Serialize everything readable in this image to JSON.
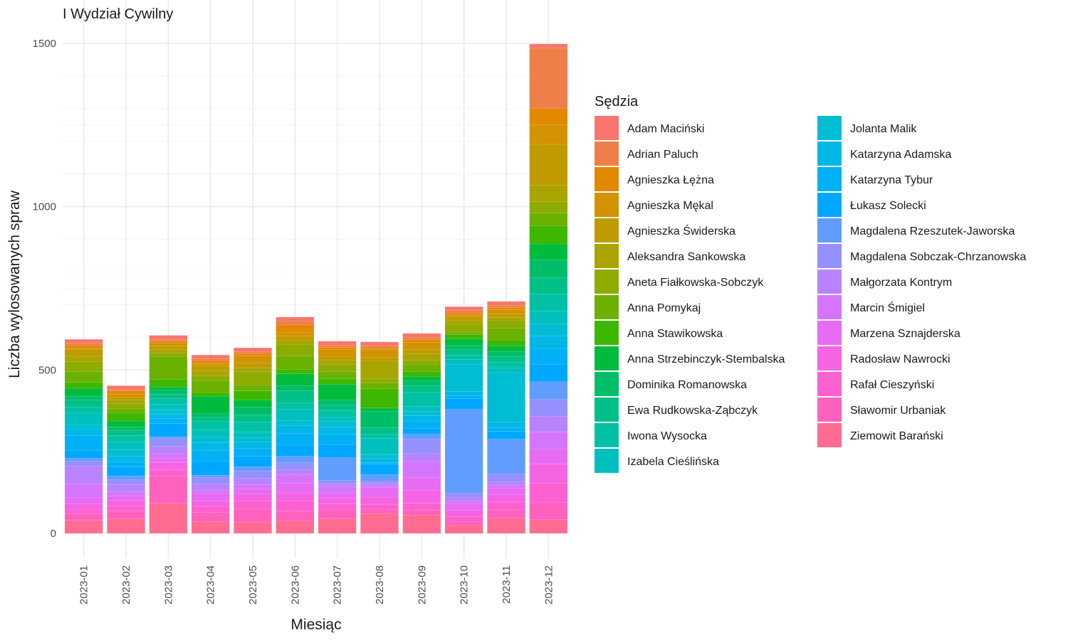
{
  "chart_data": {
    "type": "bar",
    "stacked": true,
    "title": "I Wydział Cywilny",
    "xlabel": "Miesiąc",
    "ylabel": "Liczba wylosowanych spraw",
    "legend_title": "Sędzia",
    "legend_position": "right",
    "grid": true,
    "ylim": [
      -55,
      1560
    ],
    "yticks": [
      0,
      500,
      1000,
      1500
    ],
    "categories": [
      "2023-01",
      "2023-02",
      "2023-03",
      "2023-04",
      "2023-05",
      "2023-06",
      "2023-07",
      "2023-08",
      "2023-09",
      "2023-10",
      "2023-11",
      "2023-12"
    ],
    "series": [
      {
        "name": "Adam Maciński",
        "color": "#F8766D",
        "values": [
          12,
          12,
          12,
          12,
          12,
          12,
          12,
          12,
          12,
          12,
          12,
          12
        ]
      },
      {
        "name": "Adrian Paluch",
        "color": "#EF7F49",
        "values": [
          6,
          4,
          6,
          6,
          6,
          12,
          6,
          6,
          6,
          8,
          6,
          185
        ]
      },
      {
        "name": "Agnieszka Łężna",
        "color": "#E38900",
        "values": [
          8,
          10,
          6,
          8,
          6,
          22,
          8,
          6,
          10,
          6,
          8,
          50
        ]
      },
      {
        "name": "Agnieszka Mękal",
        "color": "#D39200",
        "values": [
          6,
          10,
          8,
          8,
          22,
          12,
          20,
          24,
          22,
          6,
          12,
          60
        ]
      },
      {
        "name": "Agnieszka Świderska",
        "color": "#C09B00",
        "values": [
          20,
          8,
          12,
          14,
          16,
          14,
          12,
          10,
          12,
          10,
          12,
          125
        ]
      },
      {
        "name": "Aleksandra Sankowska",
        "color": "#A9A400",
        "values": [
          16,
          10,
          10,
          16,
          10,
          12,
          12,
          54,
          20,
          12,
          8,
          50
        ]
      },
      {
        "name": "Aneta Fiałkowska-Sobczyk",
        "color": "#8EAB00",
        "values": [
          30,
          16,
          10,
          14,
          42,
          34,
          22,
          14,
          14,
          24,
          24,
          36
        ]
      },
      {
        "name": "Anna Pomykaj",
        "color": "#6BB100",
        "values": [
          34,
          14,
          70,
          36,
          18,
          42,
          22,
          18,
          20,
          8,
          36,
          38
        ]
      },
      {
        "name": "Anna Stawikowska",
        "color": "#3DB700",
        "values": [
          18,
          24,
          24,
          12,
          28,
          14,
          18,
          58,
          16,
          12,
          18,
          56
        ]
      },
      {
        "name": "Anna Strzebinczyk-Stembalska",
        "color": "#00BB3C",
        "values": [
          24,
          18,
          10,
          52,
          22,
          36,
          48,
          10,
          12,
          20,
          18,
          48
        ]
      },
      {
        "name": "Dominika Romanowska",
        "color": "#00BE67",
        "values": [
          12,
          12,
          12,
          12,
          24,
          16,
          16,
          50,
          16,
          14,
          14,
          56
        ]
      },
      {
        "name": "Ewa Rudkowska-Ząbczyk",
        "color": "#00C088",
        "values": [
          22,
          14,
          14,
          14,
          22,
          36,
          16,
          20,
          20,
          16,
          18,
          50
        ]
      },
      {
        "name": "Iwona Wysocka",
        "color": "#00C1A5",
        "values": [
          18,
          20,
          16,
          26,
          30,
          20,
          20,
          14,
          44,
          14,
          18,
          52
        ]
      },
      {
        "name": "Izabela Cieślińska",
        "color": "#00C0BE",
        "values": [
          36,
          24,
          18,
          22,
          18,
          34,
          14,
          50,
          14,
          14,
          14,
          38
        ]
      },
      {
        "name": "Jolanta Malik",
        "color": "#00BDD4",
        "values": [
          12,
          20,
          14,
          16,
          12,
          16,
          16,
          10,
          14,
          84,
          152,
          38
        ]
      },
      {
        "name": "Katarzyna Adamska",
        "color": "#00B8E6",
        "values": [
          20,
          18,
          12,
          24,
          20,
          24,
          22,
          14,
          16,
          12,
          16,
          38
        ]
      },
      {
        "name": "Katarzyna Tybur",
        "color": "#00B1F5",
        "values": [
          46,
          14,
          16,
          34,
          24,
          36,
          32,
          4,
          22,
          10,
          12,
          48
        ]
      },
      {
        "name": "Łukasz Solecki",
        "color": "#00A7FF",
        "values": [
          24,
          28,
          40,
          42,
          32,
          34,
          40,
          32,
          18,
          32,
          24,
          54
        ]
      },
      {
        "name": "Magdalena Rzeszutek-Jaworska",
        "color": "#619CFF",
        "values": [
          8,
          12,
          6,
          6,
          14,
          20,
          70,
          20,
          16,
          256,
          106,
          54
        ]
      },
      {
        "name": "Magdalena Sobczak-Chrzanowska",
        "color": "#9590FF",
        "values": [
          16,
          14,
          24,
          20,
          22,
          22,
          10,
          6,
          44,
          14,
          24,
          52
        ]
      },
      {
        "name": "Małgorzata Kontrym",
        "color": "#B983FF",
        "values": [
          54,
          22,
          22,
          20,
          18,
          14,
          10,
          8,
          24,
          10,
          10,
          48
        ]
      },
      {
        "name": "Marcin Śmigiel",
        "color": "#D575FE",
        "values": [
          42,
          14,
          14,
          10,
          14,
          26,
          18,
          6,
          50,
          10,
          10,
          52
        ]
      },
      {
        "name": "Marzena Sznajderska",
        "color": "#E76BF3",
        "values": [
          20,
          12,
          14,
          22,
          16,
          30,
          16,
          30,
          38,
          20,
          20,
          46
        ]
      },
      {
        "name": "Radosław Nawrocki",
        "color": "#F564E3",
        "values": [
          18,
          18,
          22,
          18,
          20,
          24,
          18,
          22,
          40,
          18,
          22,
          58
        ]
      },
      {
        "name": "Rafał Cieszyński",
        "color": "#FD61D1",
        "values": [
          12,
          16,
          18,
          18,
          26,
          32,
          18,
          14,
          22,
          16,
          24,
          60
        ]
      },
      {
        "name": "Sławomir Urbaniak",
        "color": "#FF62BC",
        "values": [
          20,
          24,
          84,
          28,
          40,
          30,
          28,
          14,
          14,
          12,
          26,
          52
        ]
      },
      {
        "name": "Ziemowit Barański",
        "color": "#FF6C91",
        "values": [
          40,
          44,
          92,
          36,
          34,
          38,
          44,
          60,
          56,
          24,
          46,
          42
        ]
      }
    ]
  }
}
